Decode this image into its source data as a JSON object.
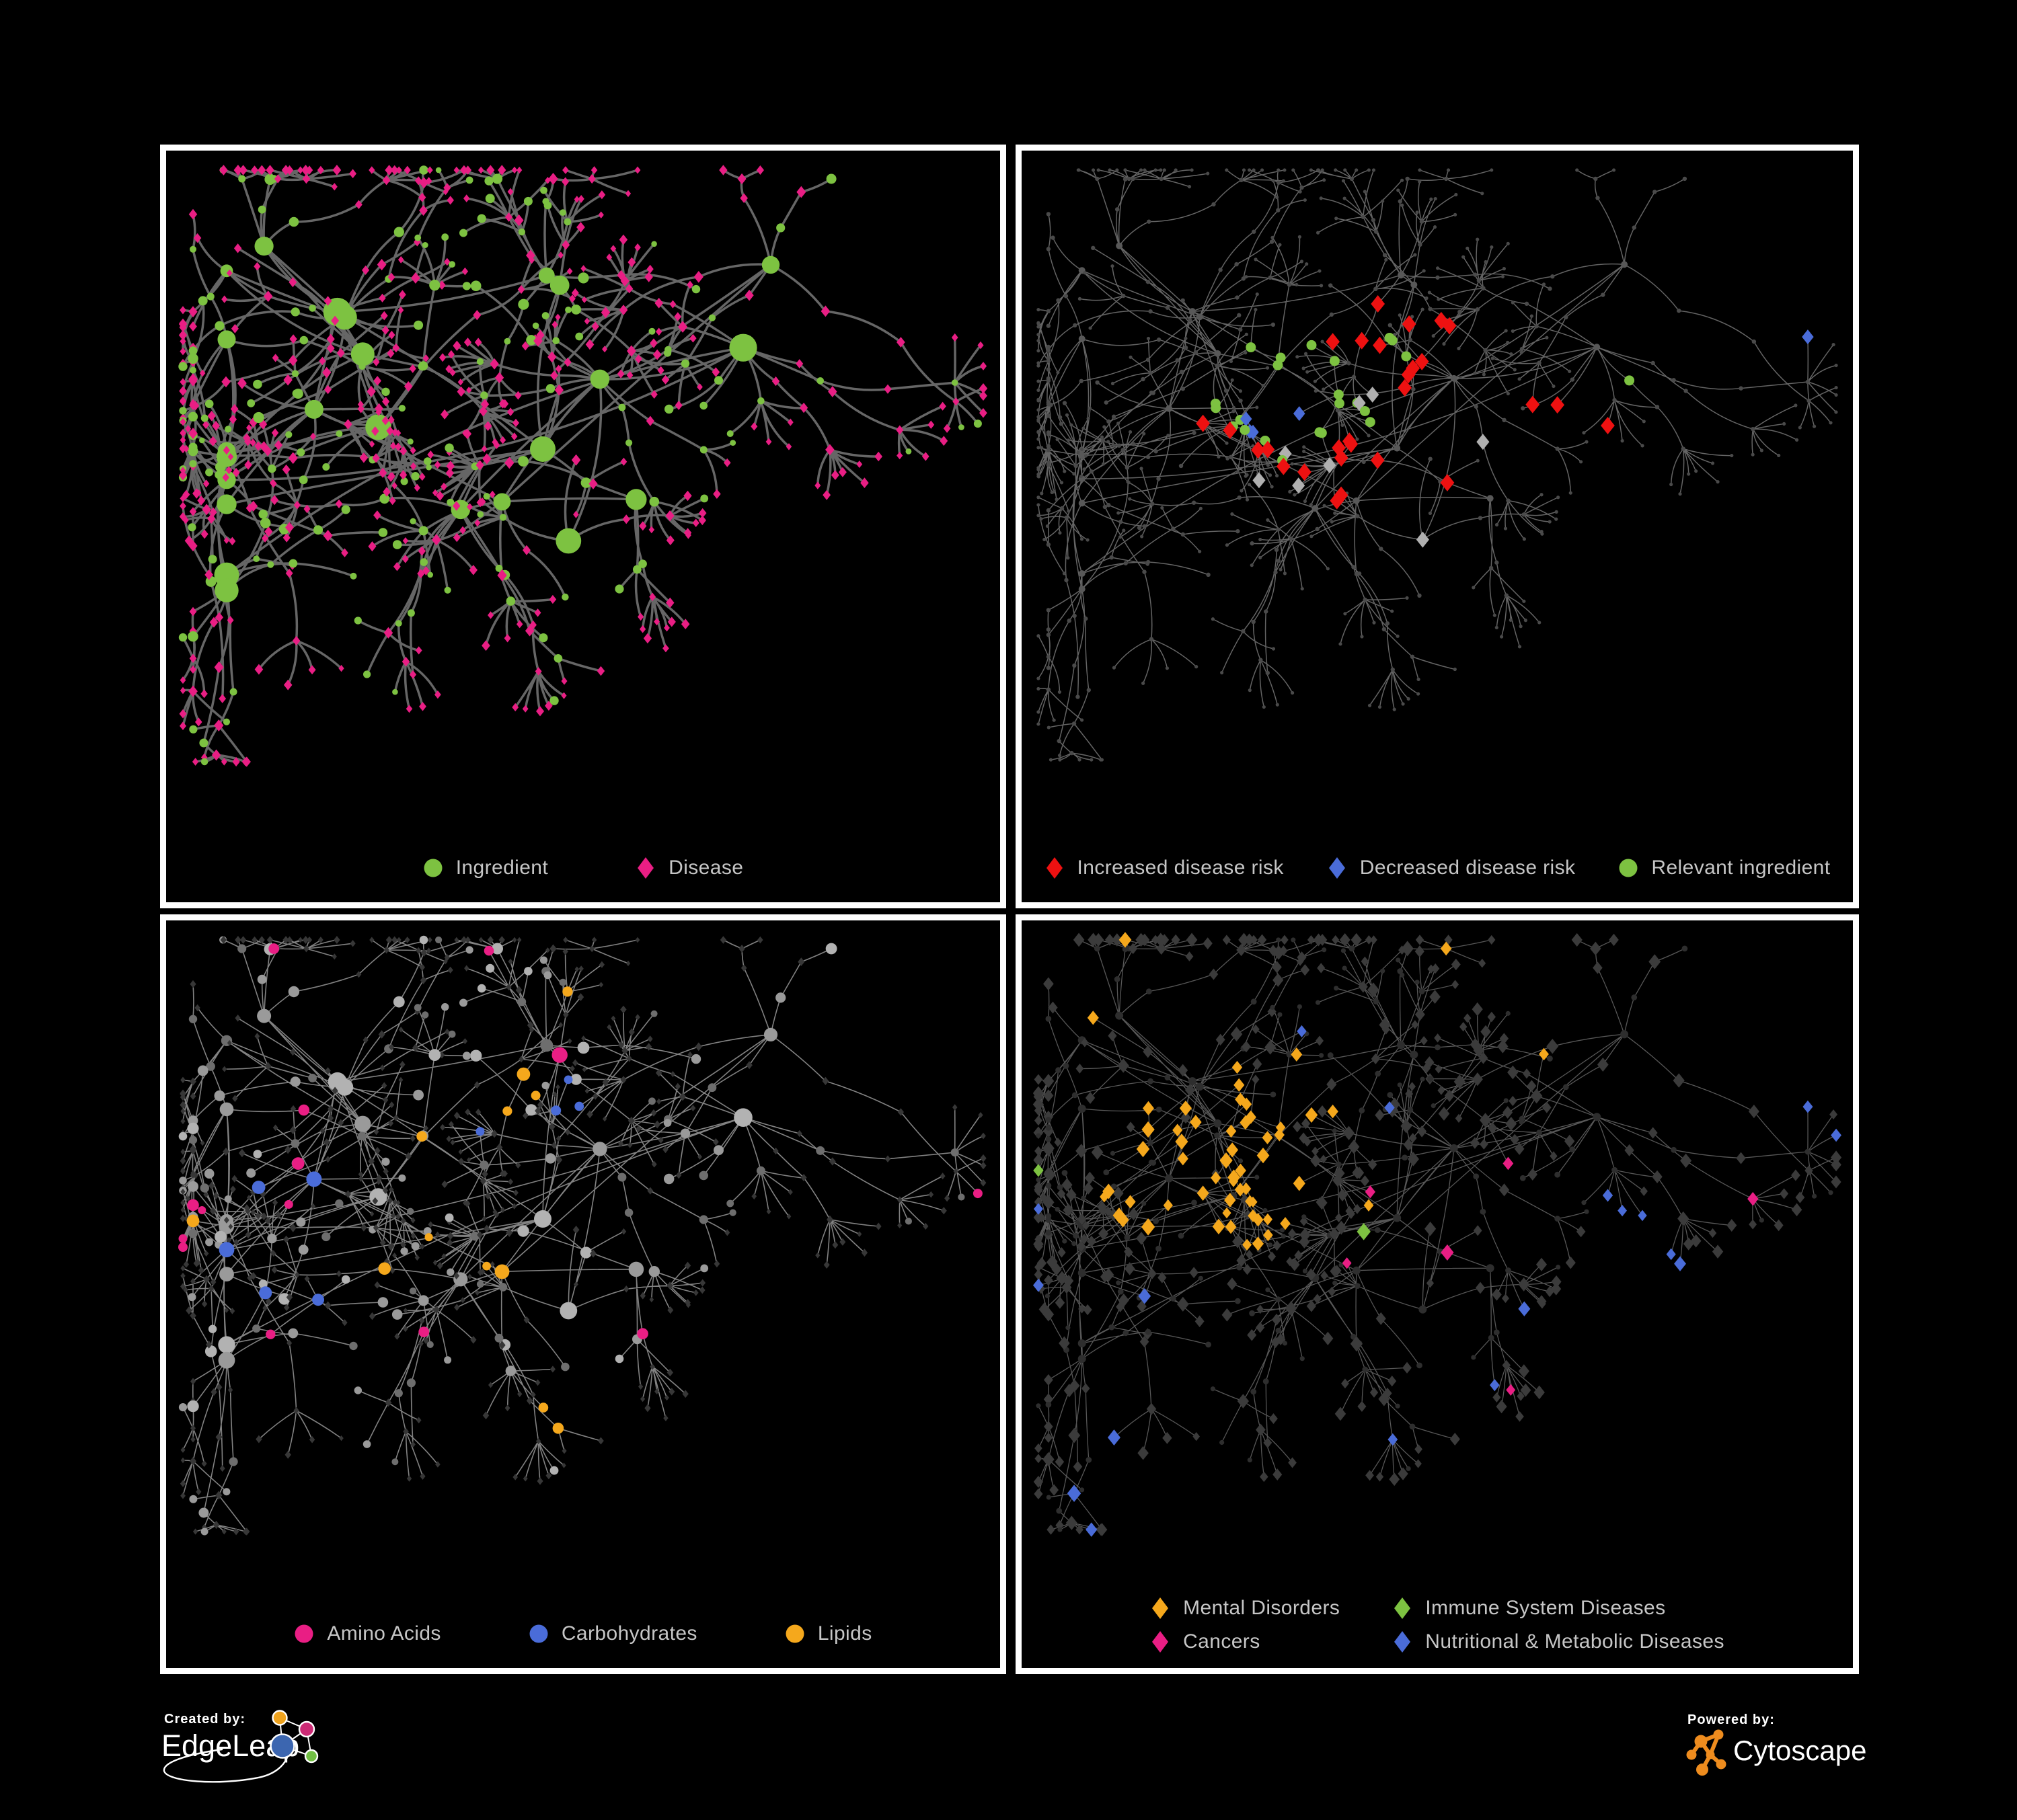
{
  "canvas": {
    "bg": "#000000",
    "panel_border": "#ffffff"
  },
  "palette": {
    "green": "#7dc241",
    "magenta": "#e91e84",
    "red": "#ee1111",
    "blue": "#4a6cd9",
    "orange": "#f5a81c",
    "silver": "#b0b0b0",
    "legend_text": "#c6c6c6"
  },
  "panels": [
    {
      "id": "ingredient-disease",
      "legend": {
        "layout": "row",
        "gap": 130,
        "items": [
          {
            "shape": "circle",
            "color": "green",
            "label": "Ingredient"
          },
          {
            "shape": "diamond",
            "color": "magenta",
            "label": "Disease"
          }
        ]
      },
      "net": {
        "scheme": "bipartite",
        "edge": "#6f6f6f",
        "edgeWidth": 3.5,
        "curve": 0.16
      }
    },
    {
      "id": "disease-risk",
      "legend": {
        "layout": "row",
        "gap": 64,
        "items": [
          {
            "shape": "diamond",
            "color": "red",
            "label": "Increased disease risk"
          },
          {
            "shape": "diamond",
            "color": "blue",
            "label": "Decreased disease risk"
          },
          {
            "shape": "circle",
            "color": "green",
            "label": "Relevant ingredient"
          }
        ]
      },
      "net": {
        "scheme": "risk",
        "edge": "#6c6c6c",
        "edgeWidth": 1.5,
        "curve": 0.16,
        "base": "#4a4a4a",
        "overlays": [
          {
            "shape": "diamond",
            "color": "red",
            "size": 13,
            "zones": [
              [
                0.36,
                0.4,
                0.17,
                0.15
              ],
              [
                0.52,
                0.5,
                0.12,
                0.16
              ],
              [
                0.46,
                0.3,
                0.1,
                0.1
              ],
              [
                0.62,
                0.44,
                0.09,
                0.14
              ],
              [
                0.74,
                0.79,
                0.06,
                0.8
              ],
              [
                0.68,
                0.7,
                0.04,
                0.6
              ]
            ]
          },
          {
            "shape": "diamond",
            "color": "blue",
            "size": 11,
            "zones": [
              [
                0.315,
                0.425,
                0.05,
                0.55
              ],
              [
                0.935,
                0.27,
                0.05,
                0.9
              ]
            ]
          },
          {
            "shape": "circle",
            "color": "green",
            "size": 7.5,
            "zones": [
              [
                0.35,
                0.38,
                0.13,
                0.26
              ],
              [
                0.5,
                0.44,
                0.1,
                0.14
              ],
              [
                0.7,
                0.36,
                0.035,
                0.9
              ]
            ]
          },
          {
            "shape": "diamond",
            "color": "silver",
            "size": 12,
            "zones": [
              [
                0.42,
                0.36,
                0.05,
                0.45
              ],
              [
                0.52,
                0.55,
                0.12,
                0.07
              ],
              [
                0.33,
                0.52,
                0.06,
                0.25
              ]
            ]
          }
        ]
      }
    },
    {
      "id": "compound-class",
      "legend": {
        "layout": "row",
        "gap": 130,
        "items": [
          {
            "shape": "circle",
            "color": "magenta",
            "label": "Amino Acids"
          },
          {
            "shape": "circle",
            "color": "blue",
            "label": "Carbohydrates"
          },
          {
            "shape": "circle",
            "color": "orange",
            "label": "Lipids"
          }
        ]
      },
      "net": {
        "scheme": "compound",
        "edge": "#8d8d8d",
        "edgeWidth": 1.6,
        "curve": 0.05,
        "overlays": [
          {
            "shape": "circle",
            "color": "orange",
            "zones": [
              [
                0.42,
                0.3,
                0.085,
                0.85
              ],
              [
                0.36,
                0.4,
                0.09,
                0.3
              ],
              [
                0.3,
                0.52,
                0.09,
                0.18
              ],
              [
                0.44,
                0.8,
                0.045,
                0.9
              ],
              [
                0.5,
                0.5,
                2,
                0.035
              ]
            ]
          },
          {
            "shape": "circle",
            "color": "blue",
            "zones": [
              [
                0.42,
                0.3,
                0.085,
                0.3
              ],
              [
                0.5,
                0.5,
                2,
                0.018
              ]
            ]
          },
          {
            "shape": "circle",
            "color": "magenta",
            "zones": [
              [
                0.5,
                0.5,
                2,
                0.05
              ]
            ]
          }
        ]
      }
    },
    {
      "id": "disease-category",
      "legend": {
        "layout": "grid",
        "items": [
          {
            "shape": "diamond",
            "color": "orange",
            "label": "Mental Disorders"
          },
          {
            "shape": "diamond",
            "color": "green",
            "label": "Immune System Diseases"
          },
          {
            "shape": "diamond",
            "color": "magenta",
            "label": "Cancers"
          },
          {
            "shape": "diamond",
            "color": "blue",
            "label": "Nutritional & Metabolic Diseases"
          }
        ]
      },
      "net": {
        "scheme": "category",
        "edge": "#5e5e5e",
        "edgeWidth": 1.3,
        "curve": 0.05,
        "base": "#3b3b3b",
        "overlays": [
          {
            "shape": "diamond",
            "color": "orange",
            "zones": [
              [
                0.22,
                0.4,
                0.13,
                0.8
              ],
              [
                0.3,
                0.28,
                0.08,
                0.45
              ],
              [
                0.5,
                0.5,
                2,
                0.012
              ]
            ]
          },
          {
            "shape": "diamond",
            "color": "magenta",
            "zones": [
              [
                0.52,
                0.47,
                0.11,
                0.5
              ],
              [
                0.45,
                0.57,
                0.07,
                0.35
              ],
              [
                0.87,
                0.2,
                0.05,
                0.7
              ],
              [
                0.5,
                0.5,
                2,
                0.01
              ]
            ]
          },
          {
            "shape": "diamond",
            "color": "blue",
            "zones": [
              [
                0.72,
                0.5,
                0.07,
                0.65
              ],
              [
                0.83,
                0.64,
                0.06,
                0.55
              ],
              [
                0.92,
                0.3,
                0.08,
                0.4
              ],
              [
                0.67,
                0.13,
                0.06,
                0.45
              ],
              [
                0.5,
                0.5,
                2,
                0.028
              ]
            ]
          },
          {
            "shape": "diamond",
            "color": "green",
            "zones": [
              [
                0.5,
                0.5,
                2,
                0.012
              ]
            ]
          }
        ]
      }
    }
  ],
  "footer": {
    "created_by": "Created by:",
    "edgeleap_brand": "EdgeLeap",
    "powered_by": "Powered by:",
    "cytoscape_brand": "Cytoscape",
    "edgeleap_logo_colors": {
      "blue": "#3c66b0",
      "orange": "#eea21d",
      "magenta": "#cc2a75",
      "green": "#71bf44"
    },
    "cytoscape_logo_color": "#ee8c1e"
  }
}
